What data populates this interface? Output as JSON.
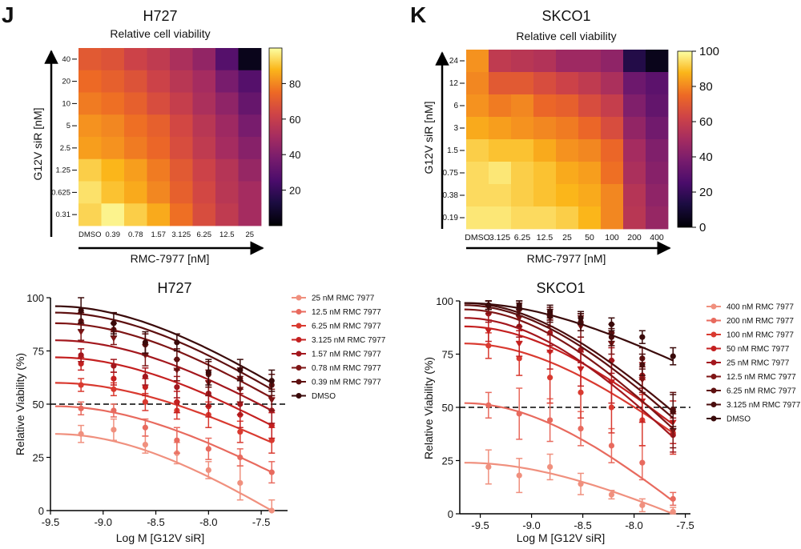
{
  "panels": {
    "j": {
      "letter": "J",
      "cell_line": "H727",
      "heatmap_subtitle": "Relative cell viability",
      "x_label": "RMC-7977 [nM]",
      "y_label": "G12V siR [nM]",
      "curve_title": "H727",
      "curve_xlabel": "Log M [G12V siR]",
      "curve_ylabel": "Relative Viability (%)"
    },
    "k": {
      "letter": "K",
      "cell_line": "SKCO1",
      "heatmap_subtitle": "Relative cell viability",
      "x_label": "RMC-7977 [nM]",
      "y_label": "G12V siR [nM]",
      "curve_title": "SKCO1",
      "curve_xlabel": "Log M [G12V siR]",
      "curve_ylabel": "Relative Viability (%)"
    }
  },
  "chart_data": [
    {
      "id": "j-heatmap",
      "type": "heatmap",
      "title": "H727",
      "subtitle": "Relative cell viability",
      "xlabel": "RMC-7977 [nM]",
      "ylabel": "G12V siR [nM]",
      "x_categories": [
        "DMSO",
        "0.39",
        "0.78",
        "1.57",
        "3.125",
        "6.25",
        "12.5",
        "25"
      ],
      "y_categories": [
        "40",
        "20",
        "10",
        "5",
        "2.5",
        "1.25",
        "0.625",
        "0.31"
      ],
      "values": [
        [
          70,
          68,
          62,
          58,
          52,
          45,
          28,
          5
        ],
        [
          75,
          72,
          68,
          62,
          56,
          50,
          38,
          28
        ],
        [
          78,
          76,
          72,
          66,
          60,
          52,
          44,
          33
        ],
        [
          82,
          80,
          76,
          72,
          64,
          56,
          48,
          38
        ],
        [
          84,
          82,
          78,
          74,
          66,
          58,
          50,
          42
        ],
        [
          92,
          88,
          84,
          78,
          70,
          62,
          55,
          46
        ],
        [
          95,
          90,
          86,
          80,
          72,
          64,
          56,
          50
        ],
        [
          93,
          98,
          92,
          86,
          76,
          66,
          58,
          50
        ]
      ],
      "colorbar": {
        "min": 0,
        "max": 100,
        "ticks": [
          20,
          40,
          60,
          80
        ],
        "colormap": "inferno-like"
      }
    },
    {
      "id": "k-heatmap",
      "type": "heatmap",
      "title": "SKCO1",
      "subtitle": "Relative cell viability",
      "xlabel": "RMC-7977 [nM]",
      "ylabel": "G12V siR [nM]",
      "x_categories": [
        "DMSO",
        "3.125",
        "6.25",
        "12.5",
        "25",
        "50",
        "100",
        "200",
        "400"
      ],
      "y_categories": [
        "24",
        "12",
        "6",
        "3",
        "1.5",
        "0.75",
        "0.38",
        "0.19"
      ],
      "values": [
        [
          82,
          58,
          56,
          54,
          48,
          48,
          44,
          15,
          5
        ],
        [
          80,
          70,
          70,
          66,
          62,
          58,
          52,
          35,
          30
        ],
        [
          82,
          78,
          80,
          74,
          72,
          66,
          60,
          40,
          32
        ],
        [
          86,
          84,
          82,
          80,
          78,
          74,
          66,
          45,
          36
        ],
        [
          92,
          90,
          90,
          86,
          82,
          80,
          74,
          50,
          40
        ],
        [
          94,
          96,
          92,
          90,
          86,
          84,
          76,
          52,
          42
        ],
        [
          94,
          94,
          92,
          90,
          88,
          86,
          80,
          55,
          44
        ],
        [
          96,
          96,
          94,
          94,
          92,
          88,
          80,
          56,
          46
        ]
      ],
      "colorbar": {
        "min": 0,
        "max": 100,
        "ticks": [
          0,
          20,
          40,
          60,
          80,
          100
        ],
        "colormap": "inferno-like"
      }
    },
    {
      "id": "j-curves",
      "type": "line",
      "title": "H727",
      "xlabel": "Log M [G12V siR]",
      "ylabel": "Relative Viability (%)",
      "xlim": [
        -9.5,
        -7.25
      ],
      "ylim": [
        0,
        100
      ],
      "x_ticks": [
        -9.5,
        -9.0,
        -8.5,
        -8.0,
        -7.5
      ],
      "x_tick_labels": [
        "-9.5",
        "-9.0",
        "-8.5",
        "-8.0",
        "-7.5"
      ],
      "y_ticks": [
        0,
        25,
        50,
        75,
        100
      ],
      "reference_line": 50,
      "x": [
        -9.21,
        -8.9,
        -8.6,
        -8.3,
        -8.0,
        -7.7,
        -7.4
      ],
      "series": [
        {
          "name": "25 nM RMC 7977",
          "color": "#f0907e",
          "values": [
            36,
            38,
            31,
            27,
            19,
            13,
            0
          ],
          "errors": [
            4,
            5,
            4,
            5,
            4,
            8,
            5
          ],
          "fit_start": 36,
          "fit_end": 0,
          "marker": "circle"
        },
        {
          "name": "12.5 nM RMC 7977",
          "color": "#e86a5e",
          "values": [
            48,
            47,
            39,
            33,
            29,
            25,
            18
          ],
          "errors": [
            3,
            3,
            4,
            6,
            5,
            4,
            5
          ],
          "fit_start": 49,
          "fit_end": 18,
          "marker": "circle"
        },
        {
          "name": "6.25 nM RMC 7977",
          "color": "#d93a30",
          "values": [
            59,
            57,
            51,
            47,
            45,
            37,
            33
          ],
          "errors": [
            3,
            3,
            4,
            4,
            6,
            5,
            6
          ],
          "fit_start": 60,
          "fit_end": 32,
          "marker": "circle"
        },
        {
          "name": "3.125 nM RMC 7977",
          "color": "#c42020",
          "values": [
            69,
            62,
            58,
            51,
            49,
            45,
            40
          ],
          "errors": [
            3,
            3,
            4,
            5,
            5,
            6,
            6
          ],
          "fit_start": 72,
          "fit_end": 40,
          "marker": "circle"
        },
        {
          "name": "1.57 nM RMC 7977",
          "color": "#a3171d",
          "values": [
            73,
            68,
            63,
            58,
            55,
            50,
            47
          ],
          "errors": [
            3,
            3,
            4,
            5,
            6,
            5,
            6
          ],
          "fit_start": 80,
          "fit_end": 47,
          "marker": "circle"
        },
        {
          "name": "0.78 nM RMC 7977",
          "color": "#7e1515",
          "values": [
            84,
            81,
            73,
            66,
            60,
            57,
            52
          ],
          "errors": [
            4,
            3,
            5,
            5,
            6,
            6,
            5
          ],
          "fit_start": 88,
          "fit_end": 53,
          "marker": "triangle"
        },
        {
          "name": "0.39 nM RMC 7977",
          "color": "#5e1010",
          "values": [
            89,
            85,
            78,
            71,
            64,
            62,
            59
          ],
          "errors": [
            4,
            3,
            5,
            5,
            6,
            5,
            5
          ],
          "fit_start": 93,
          "fit_end": 57,
          "marker": "circle"
        },
        {
          "name": "DMSO",
          "color": "#3a0a0a",
          "values": [
            94,
            88,
            79,
            79,
            65,
            66,
            61
          ],
          "errors": [
            6,
            5,
            5,
            4,
            6,
            5,
            5
          ],
          "fit_start": 96,
          "fit_end": 60,
          "marker": "circle"
        }
      ]
    },
    {
      "id": "k-curves",
      "type": "line",
      "title": "SKCO1",
      "xlabel": "Log M [G12V siR]",
      "ylabel": "Relative Viability (%)",
      "xlim": [
        -9.7,
        -7.45
      ],
      "ylim": [
        0,
        100
      ],
      "x_ticks": [
        -9.5,
        -9.0,
        -8.5,
        -8.0,
        -7.5
      ],
      "x_tick_labels": [
        "-9.5",
        "-9.0",
        "-8.5",
        "-8.0",
        "-7.5"
      ],
      "y_ticks": [
        0,
        25,
        50,
        75,
        100
      ],
      "reference_line": 50,
      "x": [
        -9.42,
        -9.12,
        -8.82,
        -8.52,
        -8.22,
        -7.92,
        -7.62
      ],
      "series": [
        {
          "name": "400 nM RMC 7977",
          "color": "#f0907e",
          "values": [
            22,
            18,
            22,
            14,
            9,
            4,
            1
          ],
          "errors": [
            8,
            8,
            6,
            5,
            2,
            3,
            2
          ],
          "fit_start": 24,
          "fit_end": 0,
          "marker": "circle"
        },
        {
          "name": "200 nM RMC 7977",
          "color": "#e86a5e",
          "values": [
            51,
            47,
            44,
            40,
            32,
            24,
            7
          ],
          "errors": [
            6,
            12,
            10,
            8,
            8,
            8,
            3
          ],
          "fit_start": 52,
          "fit_end": 6,
          "marker": "circle"
        },
        {
          "name": "100 nM RMC 7977",
          "color": "#d93a30",
          "values": [
            79,
            73,
            64,
            57,
            50,
            44,
            38
          ],
          "errors": [
            6,
            8,
            12,
            12,
            12,
            12,
            10
          ],
          "fit_start": 80,
          "fit_end": 38,
          "marker": "circle"
        },
        {
          "name": "50 nM RMC 7977",
          "color": "#c42020",
          "values": [
            86,
            80,
            76,
            68,
            62,
            53,
            43
          ],
          "errors": [
            5,
            6,
            8,
            8,
            10,
            10,
            10
          ],
          "fit_start": 88,
          "fit_end": 42,
          "marker": "triangle"
        },
        {
          "name": "25 nM RMC 7977",
          "color": "#a3171d",
          "values": [
            94,
            88,
            85,
            77,
            72,
            65,
            37
          ],
          "errors": [
            4,
            5,
            6,
            6,
            6,
            6,
            8
          ],
          "fit_start": 92,
          "fit_end": 36,
          "marker": "circle"
        },
        {
          "name": "12.5 nM RMC 7977",
          "color": "#7e1515",
          "values": [
            97,
            92,
            92,
            88,
            80,
            63,
            39
          ],
          "errors": [
            3,
            4,
            4,
            5,
            5,
            6,
            8
          ],
          "fit_start": 96,
          "fit_end": 40,
          "marker": "triangle"
        },
        {
          "name": "6.25 nM RMC 7977",
          "color": "#5e1010",
          "values": [
            98,
            96,
            94,
            90,
            85,
            73,
            49
          ],
          "errors": [
            2,
            3,
            3,
            4,
            4,
            5,
            8
          ],
          "fit_start": 98,
          "fit_end": 45,
          "marker": "circle"
        },
        {
          "name": "3.125 nM RMC 7977",
          "color": "#4a0d0d",
          "values": [
            98,
            97,
            93,
            90,
            83,
            70,
            48
          ],
          "errors": [
            2,
            3,
            3,
            4,
            4,
            5,
            8
          ],
          "fit_start": 99,
          "fit_end": 48,
          "marker": "circle"
        },
        {
          "name": "DMSO",
          "color": "#3a0a0a",
          "values": [
            98,
            98,
            95,
            92,
            89,
            83,
            74
          ],
          "errors": [
            2,
            2,
            3,
            3,
            3,
            3,
            4
          ],
          "fit_start": 99,
          "fit_end": 72,
          "marker": "circle"
        }
      ]
    }
  ]
}
